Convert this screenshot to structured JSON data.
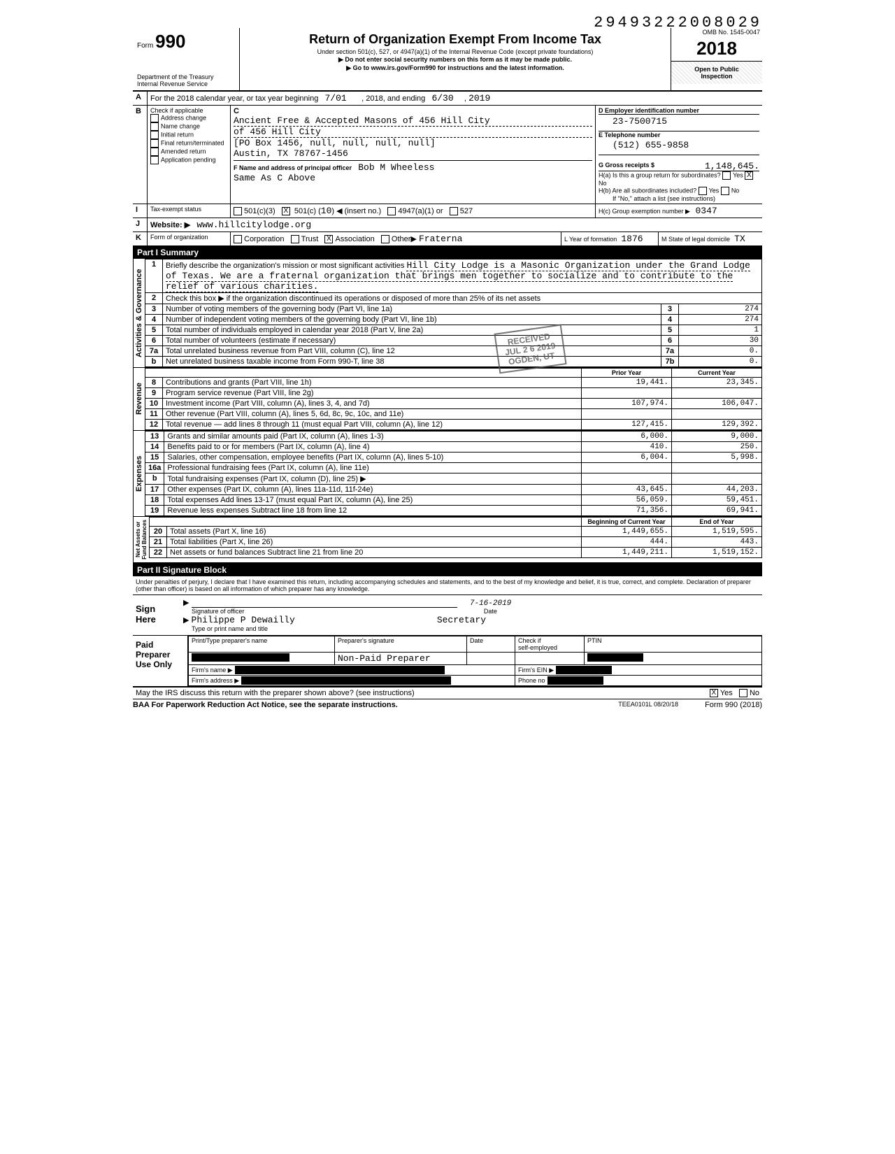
{
  "top_id": "29493222008029",
  "omb": "OMB No. 1545-0047",
  "form_no_prefix": "Form",
  "form_no": "990",
  "title": "Return of Organization Exempt From Income Tax",
  "subtitle1": "Under section 501(c), 527, or 4947(a)(1) of the Internal Revenue Code (except private foundations)",
  "subtitle2": "▶ Do not enter social security numbers on this form as it may be made public.",
  "subtitle3": "▶ Go to www.irs.gov/Form990 for instructions and the latest information.",
  "dept": "Department of the Treasury\nInternal Revenue Service",
  "year": "2018",
  "open_public": "Open to Public\nInspection",
  "lineA": "For the 2018 calendar year, or tax year beginning",
  "lineA_begin": "7/01",
  "lineA_mid": ", 2018, and ending",
  "lineA_end": "6/30",
  "lineA_year2": "2019",
  "B_label": "Check if applicable",
  "B_items": [
    "Address change",
    "Name change",
    "Initial return",
    "Final return/terminated",
    "Amended return",
    "Application pending"
  ],
  "C_label": "C",
  "org_name": "Ancient Free & Accepted Masons of 456 Hill City",
  "org_name2": "of 456 Hill City",
  "org_addr1": "[PO Box 1456, null, null, null, null]",
  "org_addr2": "Austin, TX 78767-1456",
  "D_label": "D  Employer identification number",
  "D_val": "23-7500715",
  "E_label": "E  Telephone number",
  "E_val": "(512) 655-9858",
  "G_label": "G  Gross receipts $",
  "G_val": "1,148,645.",
  "F_label": "F  Name and address of principal officer",
  "F_name": "Bob M Wheeless",
  "F_addr": "Same As C Above",
  "Ha_label": "H(a) Is this a group return for subordinates?",
  "Ha_yes": "Yes",
  "Ha_no": "No",
  "Ha_checked": "X",
  "Hb_label": "H(b) Are all subordinates included?",
  "Hb_note": "If \"No,\" attach a list (see instructions)",
  "Hc_label": "H(c) Group exemption number ▶",
  "Hc_val": "0347",
  "I_label": "Tax-exempt status",
  "I_501c3": "501(c)(3)",
  "I_501c": "501(c) (",
  "I_501c_num": "10",
  "I_501c_close": ") ◀ (insert no.)",
  "I_4947": "4947(a)(1) or",
  "I_527": "527",
  "I_checked": "X",
  "J_label": "Website: ▶",
  "J_val": "www.hillcitylodge.org",
  "K_label": "Form of organization",
  "K_corp": "Corporation",
  "K_trust": "Trust",
  "K_assoc": "Association",
  "K_other": "Other▶",
  "K_other_val": "Fraterna",
  "K_assoc_checked": "X",
  "L_label": "L Year of formation",
  "L_val": "1876",
  "M_label": "M State of legal domicile",
  "M_val": "TX",
  "partI": "Part I  Summary",
  "mission_label": "Briefly describe the organization's mission or most significant activities",
  "mission": "Hill City Lodge is a Masonic Organization under the Grand Lodge of Texas.  We are a fraternal organization that brings men together to socialize and to contribute to the relief of various charities.",
  "line2": "Check this box ▶    if the organization discontinued its operations or disposed of more than 25% of its net assets",
  "line3": "Number of voting members of the governing body (Part VI, line 1a)",
  "line4": "Number of independent voting members of the governing body (Part VI, line 1b)",
  "line5": "Total number of individuals employed in calendar year 2018 (Part V, line 2a)",
  "line6": "Total number of volunteers (estimate if necessary)",
  "line7a": "Total unrelated business revenue from Part VIII, column (C), line 12",
  "line7b": "Net unrelated business taxable income from Form 990-T, line 38",
  "v3": "274",
  "v4": "274",
  "v5": "1",
  "v6": "30",
  "v7a": "0.",
  "v7b": "0.",
  "col_prior": "Prior Year",
  "col_current": "Current Year",
  "rev_rows": [
    {
      "n": "8",
      "t": "Contributions and grants (Part VIII, line 1h)",
      "p": "19,441.",
      "c": "23,345."
    },
    {
      "n": "9",
      "t": "Program service revenue (Part VIII, line 2g)",
      "p": "",
      "c": ""
    },
    {
      "n": "10",
      "t": "Investment income (Part VIII, column (A), lines 3, 4, and 7d)",
      "p": "107,974.",
      "c": "106,047."
    },
    {
      "n": "11",
      "t": "Other revenue (Part VIII, column (A), lines 5, 6d, 8c, 9c, 10c, and 11e)",
      "p": "",
      "c": ""
    },
    {
      "n": "12",
      "t": "Total revenue — add lines 8 through 11 (must equal Part VIII, column (A), line 12)",
      "p": "127,415.",
      "c": "129,392."
    }
  ],
  "exp_rows": [
    {
      "n": "13",
      "t": "Grants and similar amounts paid (Part IX, column (A), lines 1-3)",
      "p": "6,000.",
      "c": "9,000."
    },
    {
      "n": "14",
      "t": "Benefits paid to or for members (Part IX, column (A), line 4)",
      "p": "410.",
      "c": "250."
    },
    {
      "n": "15",
      "t": "Salaries, other compensation, employee benefits (Part IX, column (A), lines 5-10)",
      "p": "6,004.",
      "c": "5,998."
    },
    {
      "n": "16a",
      "t": "Professional fundraising fees (Part IX, column (A), line 11e)",
      "p": "",
      "c": ""
    },
    {
      "n": "b",
      "t": "Total fundraising expenses (Part IX, column (D), line 25) ▶",
      "p": "",
      "c": ""
    },
    {
      "n": "17",
      "t": "Other expenses (Part IX, column (A), lines 11a-11d, 11f-24e)",
      "p": "43,645.",
      "c": "44,203."
    },
    {
      "n": "18",
      "t": "Total expenses  Add lines 13-17 (must equal Part IX, column (A), line 25)",
      "p": "56,059.",
      "c": "59,451."
    },
    {
      "n": "19",
      "t": "Revenue less expenses  Subtract line 18 from line 12",
      "p": "71,356.",
      "c": "69,941."
    }
  ],
  "na_hdr_p": "Beginning of Current Year",
  "na_hdr_c": "End of Year",
  "na_rows": [
    {
      "n": "20",
      "t": "Total assets (Part X, line 16)",
      "p": "1,449,655.",
      "c": "1,519,595."
    },
    {
      "n": "21",
      "t": "Total liabilities (Part X, line 26)",
      "p": "444.",
      "c": "443."
    },
    {
      "n": "22",
      "t": "Net assets or fund balances  Subtract line 21 from line 20",
      "p": "1,449,211.",
      "c": "1,519,152."
    }
  ],
  "partII": "Part II  Signature Block",
  "perjury": "Under penalties of perjury, I declare that I have examined this return, including accompanying schedules and statements, and to the best of my knowledge and belief, it is true, correct, and complete. Declaration of preparer (other than officer) is based on all information of which preparer has any knowledge.",
  "sign_here": "Sign\nHere",
  "sig_of_officer": "Signature of officer",
  "sig_date_label": "Date",
  "sig_date": "7-16-2019",
  "sig_name": "Philippe P Dewailly",
  "sig_name_sub": "Type or print name and title",
  "sig_title": "Secretary",
  "paid_label": "Paid\nPreparer\nUse Only",
  "prep_name_label": "Print/Type preparer's name",
  "prep_sig_label": "Preparer's signature",
  "prep_date_label": "Date",
  "prep_check_label": "Check      if\nself-employed",
  "prep_ptin": "PTIN",
  "prep_nonpaid": "Non-Paid Preparer",
  "firm_name": "Firm's name   ▶",
  "firm_addr": "Firm's address ▶",
  "firm_ein": "Firm's EIN ▶",
  "firm_phone": "Phone no",
  "discuss": "May the IRS discuss this return with the preparer shown above? (see instructions)",
  "discuss_yes": "Yes",
  "discuss_no": "No",
  "discuss_checked": "X",
  "baa": "BAA  For Paperwork Reduction Act Notice, see the separate instructions.",
  "footer_mid": "TEEA0101L  08/20/18",
  "footer_right": "Form 990 (2018)",
  "stamp": "RECEIVED\nJUL 2 6 2019\nOGDEN, UT",
  "side_ag": "Activities & Governance",
  "side_rev": "Revenue",
  "side_exp": "Expenses",
  "side_na": "Net Assets or\nFund Balances"
}
